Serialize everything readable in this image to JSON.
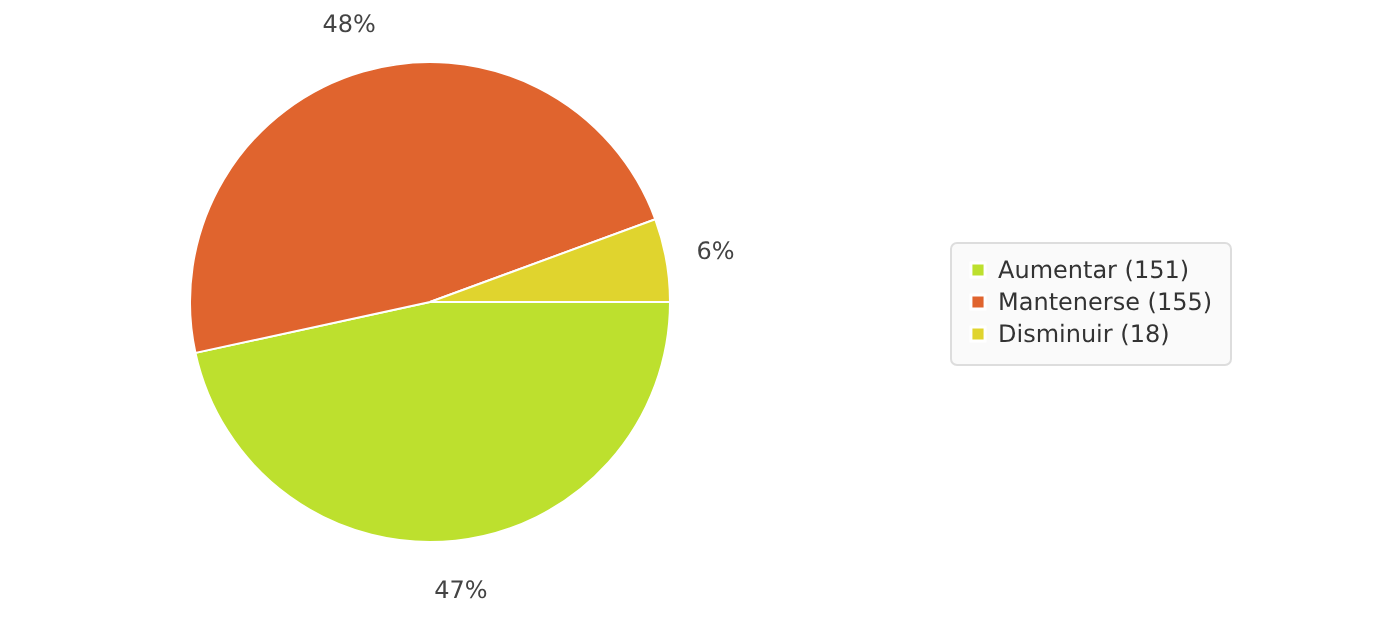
{
  "chart_data": {
    "type": "pie",
    "categories": [
      "Aumentar (151)",
      "Mantenerse (155)",
      "Disminuir (18)"
    ],
    "values": [
      46.6,
      47.8,
      5.6
    ],
    "colors": [
      "#bde02e",
      "#e0642e",
      "#e0d42e"
    ],
    "value_labels": [
      "47%",
      "48%",
      "6%"
    ],
    "legend": "right"
  }
}
